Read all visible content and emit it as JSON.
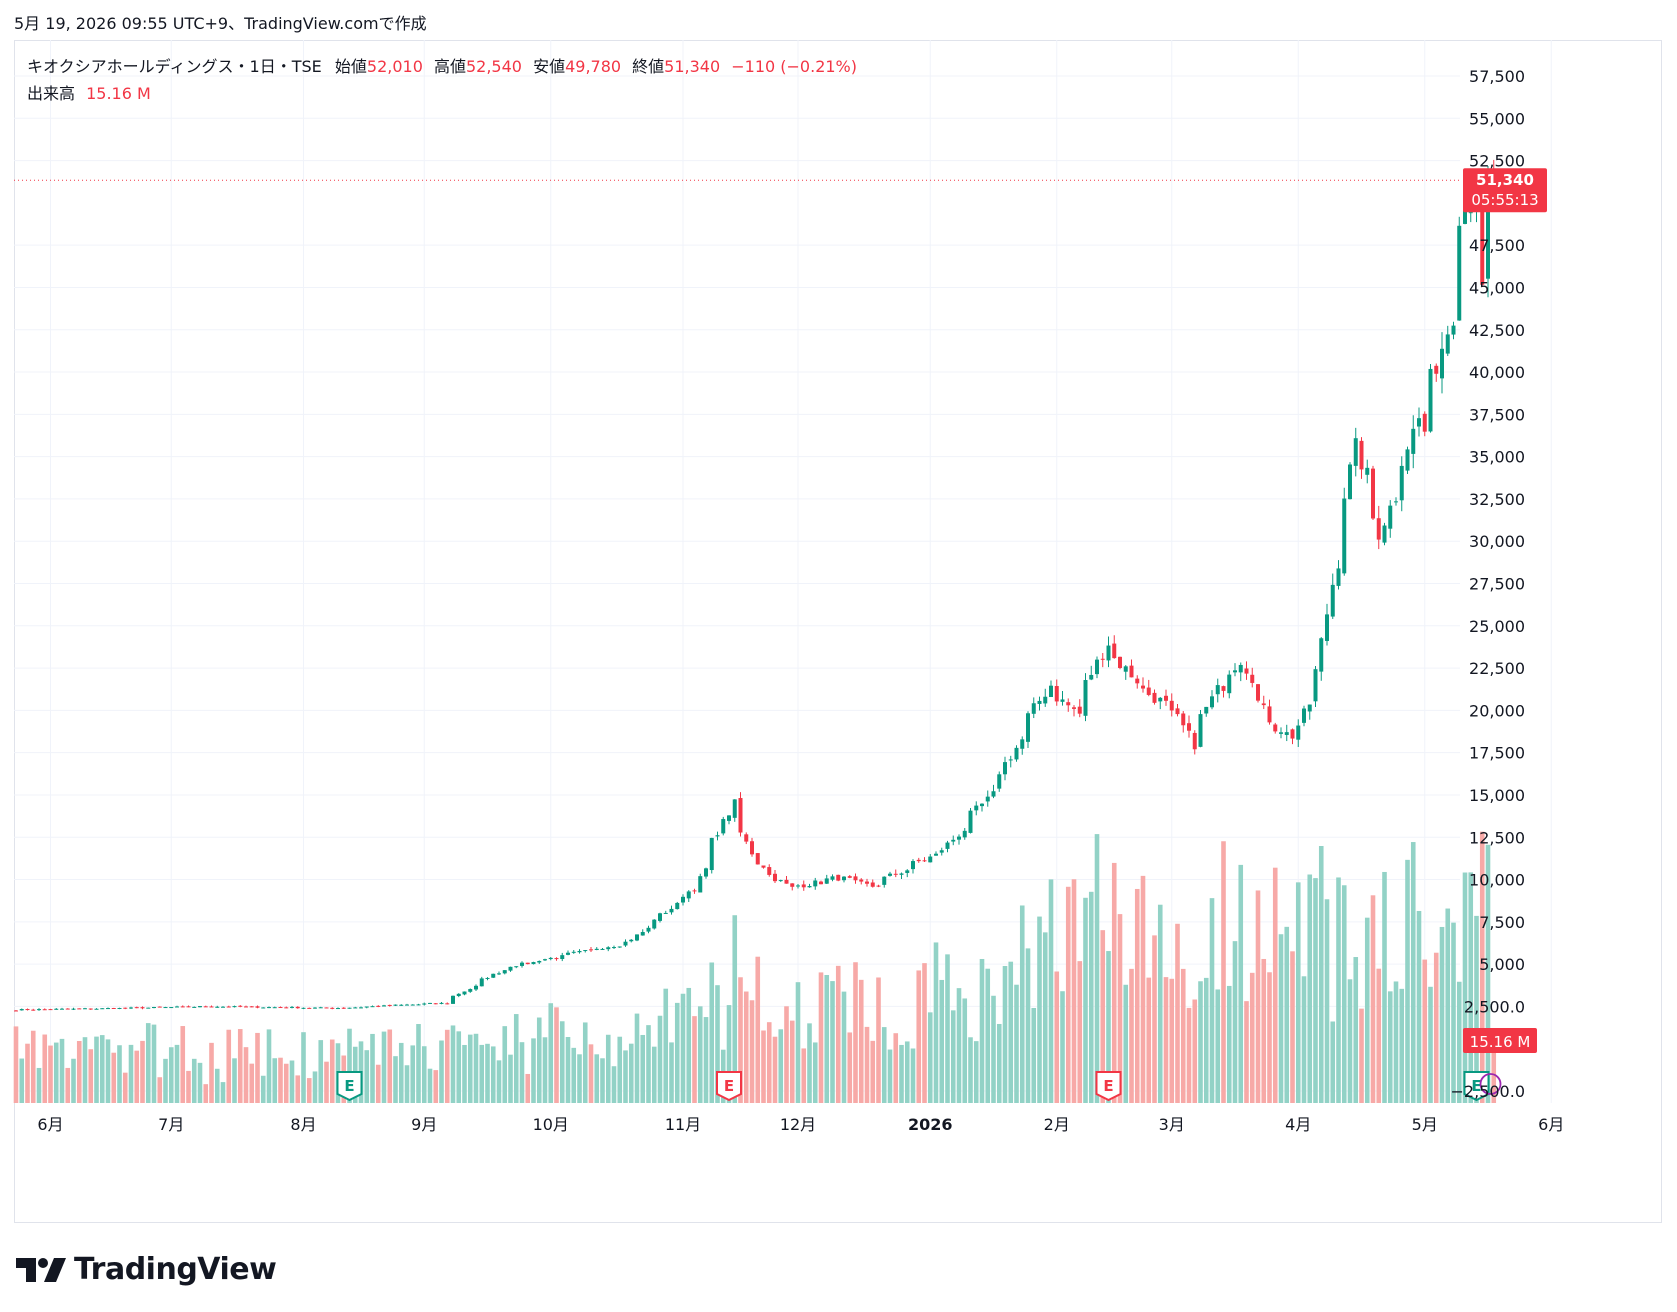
{
  "header": {
    "timestamp": "5月 19, 2026 09:55 UTC+9、TradingView.comで作成"
  },
  "legend": {
    "symbol": "キオクシアホールディングス・1日・TSE",
    "open_label": "始値",
    "open": "52,010",
    "high_label": "高値",
    "high": "52,540",
    "low_label": "安値",
    "low": "49,780",
    "close_label": "終値",
    "close": "51,340",
    "change": "−110 (−0.21%)",
    "volume_label": "出来高",
    "volume": "15.16 M"
  },
  "price_badge": {
    "price": "51,340",
    "countdown": "05:55:13"
  },
  "volume_badge": "15.16 M",
  "earnings_label": "E",
  "brand": "TradingView",
  "colors": {
    "up": "#089981",
    "down": "#f23645",
    "up_vol": "#92d2c6",
    "down_vol": "#f7a9a7",
    "grid": "#f0f3fa"
  },
  "chart_data": {
    "type": "candlestick",
    "price_axis": {
      "range": [
        -2500,
        59000
      ],
      "ticks": [
        "57,500",
        "55,000",
        "52,500",
        "47,500",
        "45,000",
        "42,500",
        "40,000",
        "37,500",
        "35,000",
        "32,500",
        "30,000",
        "27,500",
        "25,000",
        "22,500",
        "20,000",
        "17,500",
        "15,000",
        "12,500",
        "10,000",
        "7,500",
        "5,000",
        "2,500.0",
        "−2,500.0"
      ],
      "tick_values": [
        57500,
        55000,
        52500,
        47500,
        45000,
        42500,
        40000,
        37500,
        35000,
        32500,
        30000,
        27500,
        25000,
        22500,
        20000,
        17500,
        15000,
        12500,
        10000,
        7500,
        5000,
        2500,
        -2500
      ]
    },
    "time_axis": {
      "labels": [
        "6月",
        "7月",
        "8月",
        "9月",
        "10月",
        "11月",
        "12月",
        "2026",
        "2月",
        "3月",
        "4月",
        "5月",
        "6月"
      ],
      "bold": [
        false,
        false,
        false,
        false,
        false,
        false,
        false,
        true,
        false,
        false,
        false,
        false,
        false
      ]
    },
    "earnings_markers": [
      "2025-08-13",
      "2025-11-13",
      "2026-02-13",
      "2026-05-14"
    ],
    "last_close": 51340,
    "anchors": [
      [
        "2025-05-23",
        2300
      ],
      [
        "2025-06-20",
        2400
      ],
      [
        "2025-07-10",
        2500
      ],
      [
        "2025-08-10",
        2400
      ],
      [
        "2025-09-05",
        2700
      ],
      [
        "2025-09-20",
        4800
      ],
      [
        "2025-10-20",
        6300
      ],
      [
        "2025-11-05",
        9500
      ],
      [
        "2025-11-14",
        14500
      ],
      [
        "2025-11-20",
        11000
      ],
      [
        "2025-11-28",
        9500
      ],
      [
        "2025-12-10",
        10100
      ],
      [
        "2025-12-18",
        9600
      ],
      [
        "2026-01-05",
        11800
      ],
      [
        "2026-01-16",
        15000
      ],
      [
        "2026-01-30",
        21500
      ],
      [
        "2026-02-06",
        19800
      ],
      [
        "2026-02-13",
        24000
      ],
      [
        "2026-02-20",
        21800
      ],
      [
        "2026-03-03",
        19500
      ],
      [
        "2026-03-06",
        18000
      ],
      [
        "2026-03-12",
        21200
      ],
      [
        "2026-03-18",
        23000
      ],
      [
        "2026-03-26",
        19000
      ],
      [
        "2026-03-31",
        18500
      ],
      [
        "2026-04-06",
        22300
      ],
      [
        "2026-04-09",
        27500
      ],
      [
        "2026-04-15",
        35500
      ],
      [
        "2026-04-21",
        30500
      ],
      [
        "2026-04-30",
        37200
      ],
      [
        "2026-05-01",
        36500
      ],
      [
        "2026-05-08",
        43500
      ],
      [
        "2026-05-11",
        49500
      ],
      [
        "2026-05-14",
        50500
      ],
      [
        "2026-05-15",
        44500
      ],
      [
        "2026-05-18",
        51450
      ],
      [
        "2026-05-19",
        51340
      ]
    ]
  }
}
